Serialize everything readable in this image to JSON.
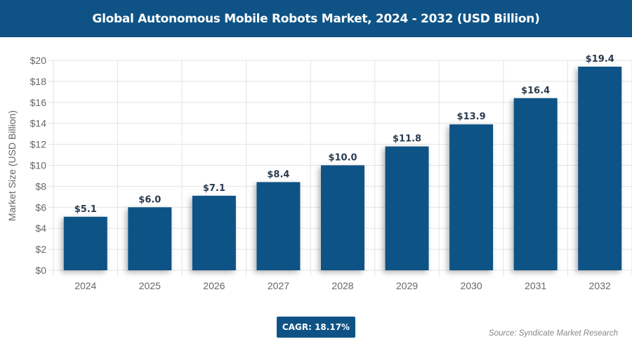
{
  "header": {
    "title": "Global Autonomous Mobile Robots Market, 2024 - 2032 (USD Billion)"
  },
  "chart_data": {
    "type": "bar",
    "title": "Global Autonomous Mobile Robots Market, 2024 - 2032 (USD Billion)",
    "categories": [
      "2024",
      "2025",
      "2026",
      "2027",
      "2028",
      "2029",
      "2030",
      "2031",
      "2032"
    ],
    "values": [
      5.1,
      6.0,
      7.1,
      8.4,
      10.0,
      11.8,
      13.9,
      16.4,
      19.4
    ],
    "data_labels": [
      "$5.1",
      "$6.0",
      "$7.1",
      "$8.4",
      "$10.0",
      "$11.8",
      "$13.9",
      "$16.4",
      "$19.4"
    ],
    "xlabel": "",
    "ylabel": "Market Size (USD Billion)",
    "ylim": [
      0,
      20
    ],
    "yticks": [
      "$0",
      "$2",
      "$4",
      "$6",
      "$8",
      "$10",
      "$12",
      "$14",
      "$16",
      "$18",
      "$20"
    ],
    "grid": true,
    "bar_color": "#0f5386"
  },
  "footer": {
    "cagr": "CAGR: 18.17%",
    "source": "Source: Syndicate Market Research"
  }
}
